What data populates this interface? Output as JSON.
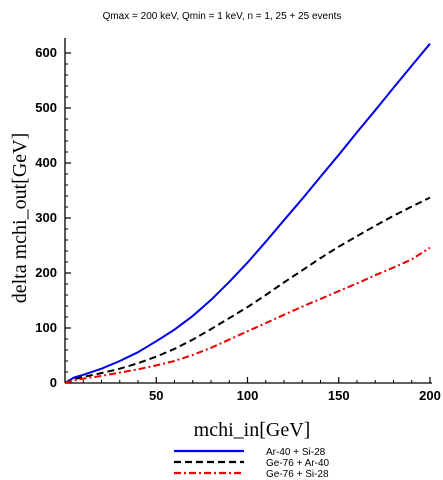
{
  "chart_data": {
    "type": "line",
    "title": "Qmax = 200 keV, Qmin = 1 keV, n = 1, 25 + 25 events",
    "xlabel": "mchi_in[GeV]",
    "ylabel": "delta mchi_out[GeV]",
    "xlim": [
      0,
      200
    ],
    "ylim": [
      0,
      620
    ],
    "xticks": [
      50,
      100,
      150,
      200
    ],
    "yticks": [
      0,
      100,
      200,
      300,
      400,
      500,
      600
    ],
    "grid": false,
    "legend_position": "bottom-center",
    "series": [
      {
        "name": "Ar-40 + Si-28",
        "color": "#0000ee",
        "dash": "solid",
        "x": [
          0,
          5,
          10,
          20,
          30,
          40,
          50,
          60,
          70,
          80,
          90,
          100,
          110,
          120,
          130,
          140,
          150,
          160,
          170,
          180,
          190,
          200
        ],
        "y": [
          0,
          10,
          15,
          26,
          40,
          56,
          76,
          97,
          122,
          151,
          184,
          219,
          257,
          296,
          335,
          375,
          415,
          456,
          496,
          537,
          577,
          617
        ]
      },
      {
        "name": "Ge-76 + Ar-40",
        "color": "#000000",
        "dash": "dashed",
        "x": [
          0,
          5,
          10,
          20,
          30,
          40,
          50,
          60,
          70,
          80,
          90,
          100,
          110,
          120,
          130,
          140,
          150,
          160,
          170,
          180,
          190,
          200
        ],
        "y": [
          0,
          7,
          11,
          18,
          26,
          36,
          48,
          62,
          79,
          98,
          118,
          138,
          160,
          183,
          205,
          227,
          248,
          267,
          286,
          304,
          321,
          337
        ]
      },
      {
        "name": "Ge-76 + Si-28",
        "color": "#ee0000",
        "dash": "dashdot",
        "x": [
          0,
          5,
          10,
          20,
          30,
          40,
          50,
          60,
          70,
          80,
          90,
          100,
          110,
          120,
          130,
          140,
          150,
          160,
          170,
          180,
          190,
          200
        ],
        "y": [
          0,
          5,
          8,
          13,
          19,
          25,
          32,
          40,
          51,
          64,
          79,
          94,
          109,
          124,
          139,
          153,
          167,
          181,
          196,
          210,
          225,
          246
        ]
      }
    ]
  }
}
